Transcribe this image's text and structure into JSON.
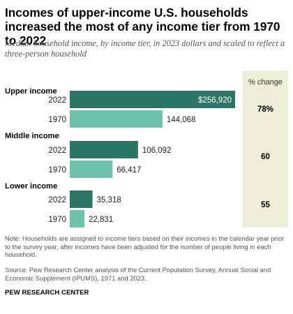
{
  "title": "Incomes of upper-income U.S. households increased the most of any income tier from 1970 to 2022",
  "subtitle": "Median household income, by income tier, in 2023 dollars and scaled to reflect a three-person household",
  "note": "Note: Households are assigned to income tiers based on their incomes in the calendar year prior to the survey year, after incomes have been adjusted for the number of people living in each household.",
  "source": "Source: Pew Research Center analysis of the Current Population Survey, Annual Social and Economic Supplement (IPUMS), 1971 and 2023.",
  "organization": "PEW RESEARCH CENTER",
  "colors": {
    "bar_2022": "#2d7566",
    "bar_1970": "#6ec1aa",
    "change_panel": "#eceed8"
  },
  "chart_data": {
    "type": "bar",
    "orientation": "horizontal",
    "change_header": "% change",
    "groups": [
      {
        "name": "Upper income",
        "change": "78%",
        "bars": [
          {
            "year": "2022",
            "value": 256920,
            "label": "$256,920"
          },
          {
            "year": "1970",
            "value": 144068,
            "label": "144,068"
          }
        ]
      },
      {
        "name": "Middle income",
        "change": "60",
        "bars": [
          {
            "year": "2022",
            "value": 106092,
            "label": "106,092"
          },
          {
            "year": "1970",
            "value": 66417,
            "label": "66,417"
          }
        ]
      },
      {
        "name": "Lower income",
        "change": "55",
        "bars": [
          {
            "year": "2022",
            "value": 35318,
            "label": "35,318"
          },
          {
            "year": "1970",
            "value": 22831,
            "label": "22,831"
          }
        ]
      }
    ]
  }
}
